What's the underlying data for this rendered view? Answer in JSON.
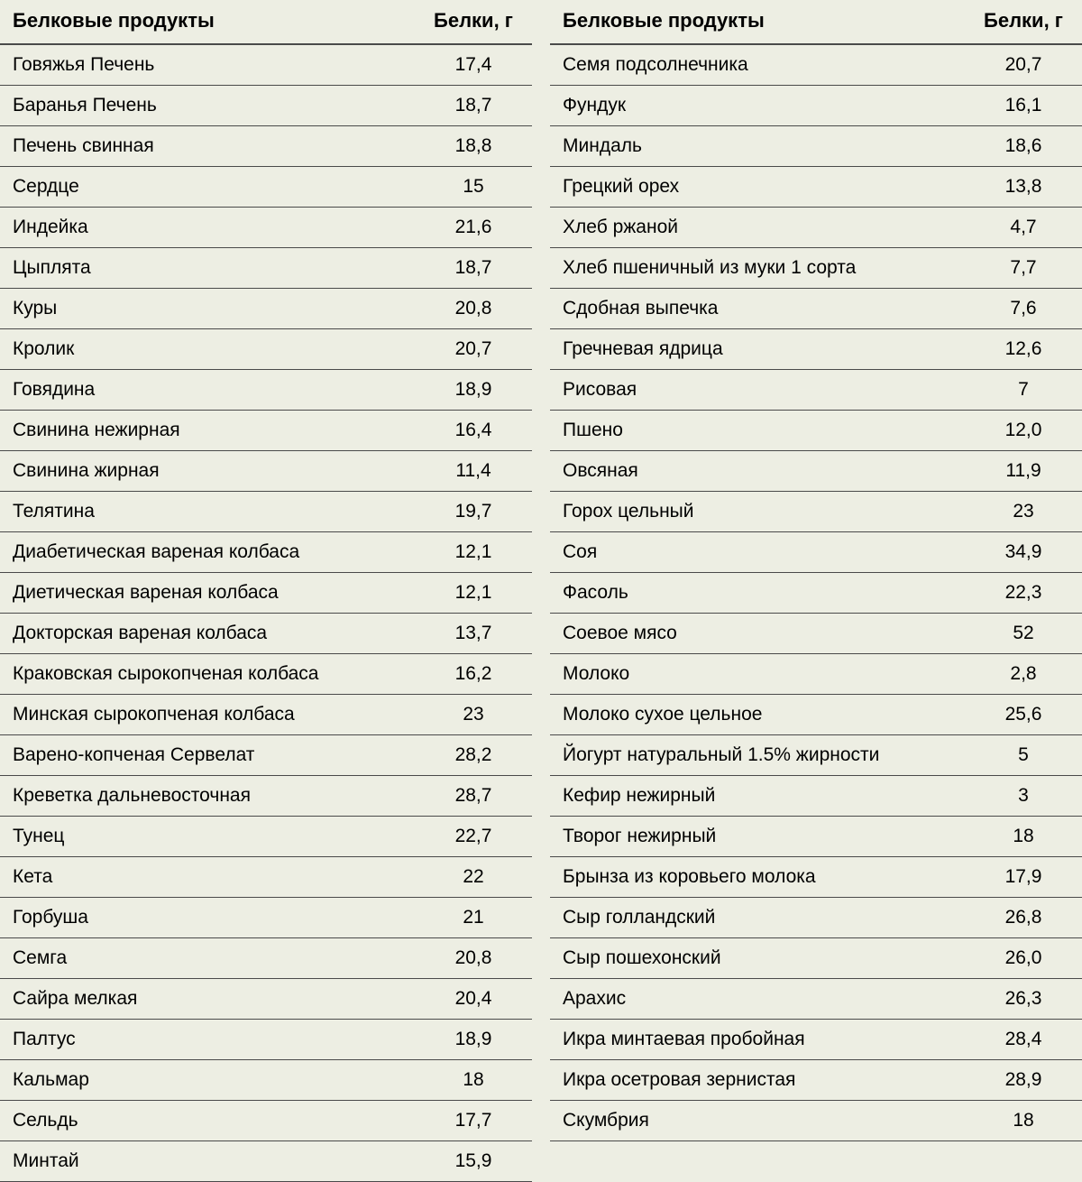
{
  "columns": {
    "product_header": "Белковые продукты",
    "value_header": "Белки, г"
  },
  "styling": {
    "background_color": "#edeee3",
    "border_color": "#4a4a4a",
    "header_border_width": 2,
    "row_border_width": 1,
    "header_fontsize": 22,
    "cell_fontsize": 21,
    "header_fontweight": "bold",
    "text_color": "#000000",
    "font_family": "Arial"
  },
  "left": {
    "rows": [
      {
        "product": "Говяжья Печень",
        "value": "17,4"
      },
      {
        "product": "Баранья Печень",
        "value": "18,7"
      },
      {
        "product": "Печень свинная",
        "value": "18,8"
      },
      {
        "product": "Сердце",
        "value": "15"
      },
      {
        "product": "Индейка",
        "value": "21,6"
      },
      {
        "product": "Цыплята",
        "value": "18,7"
      },
      {
        "product": "Куры",
        "value": "20,8"
      },
      {
        "product": "Кролик",
        "value": "20,7"
      },
      {
        "product": "Говядина",
        "value": "18,9"
      },
      {
        "product": "Свинина нежирная",
        "value": "16,4"
      },
      {
        "product": "Свинина жирная",
        "value": "11,4"
      },
      {
        "product": "Телятина",
        "value": "19,7"
      },
      {
        "product": "Диабетическая вареная колбаса",
        "value": "12,1"
      },
      {
        "product": "Диетическая вареная колбаса",
        "value": "12,1"
      },
      {
        "product": "Докторская вареная колбаса",
        "value": "13,7"
      },
      {
        "product": "Краковская сырокопченая колбаса",
        "value": "16,2"
      },
      {
        "product": "Минская сырокопченая колбаса",
        "value": "23"
      },
      {
        "product": "Варено-копченая Сервелат",
        "value": "28,2"
      },
      {
        "product": "Креветка дальневосточная",
        "value": "28,7"
      },
      {
        "product": "Тунец",
        "value": "22,7"
      },
      {
        "product": "Кета",
        "value": "22"
      },
      {
        "product": "Горбуша",
        "value": "21"
      },
      {
        "product": "Семга",
        "value": "20,8"
      },
      {
        "product": "Сайра мелкая",
        "value": "20,4"
      },
      {
        "product": "Палтус",
        "value": "18,9"
      },
      {
        "product": "Кальмар",
        "value": "18"
      },
      {
        "product": "Сельдь",
        "value": "17,7"
      },
      {
        "product": "Минтай",
        "value": "15,9"
      }
    ]
  },
  "right": {
    "rows": [
      {
        "product": "Семя подсолнечника",
        "value": "20,7"
      },
      {
        "product": "Фундук",
        "value": "16,1"
      },
      {
        "product": "Миндаль",
        "value": "18,6"
      },
      {
        "product": "Грецкий орех",
        "value": "13,8"
      },
      {
        "product": "Хлеб ржаной",
        "value": "4,7"
      },
      {
        "product": "Хлеб пшеничный из муки 1 сорта",
        "value": "7,7"
      },
      {
        "product": "Сдобная выпечка",
        "value": "7,6"
      },
      {
        "product": "Гречневая ядрица",
        "value": "12,6"
      },
      {
        "product": "Рисовая",
        "value": "7"
      },
      {
        "product": "Пшено",
        "value": "12,0"
      },
      {
        "product": "Овсяная",
        "value": "11,9"
      },
      {
        "product": "Горох цельный",
        "value": "23"
      },
      {
        "product": "Соя",
        "value": "34,9"
      },
      {
        "product": "Фасоль",
        "value": "22,3"
      },
      {
        "product": "Соевое мясо",
        "value": "52"
      },
      {
        "product": "Молоко",
        "value": "2,8"
      },
      {
        "product": "Молоко сухое цельное",
        "value": "25,6"
      },
      {
        "product": "Йогурт натуральный 1.5% жирности",
        "value": "5"
      },
      {
        "product": "Кефир нежирный",
        "value": "3"
      },
      {
        "product": "Творог нежирный",
        "value": "18"
      },
      {
        "product": "Брынза из коровьего молока",
        "value": "17,9"
      },
      {
        "product": "Сыр голландский",
        "value": "26,8"
      },
      {
        "product": "Сыр пошехонский",
        "value": "26,0"
      },
      {
        "product": "Арахис",
        "value": "26,3"
      },
      {
        "product": "Икра минтаевая пробойная",
        "value": "28,4"
      },
      {
        "product": "Икра осетровая зернистая",
        "value": "28,9"
      },
      {
        "product": "Скумбрия",
        "value": "18"
      }
    ]
  }
}
